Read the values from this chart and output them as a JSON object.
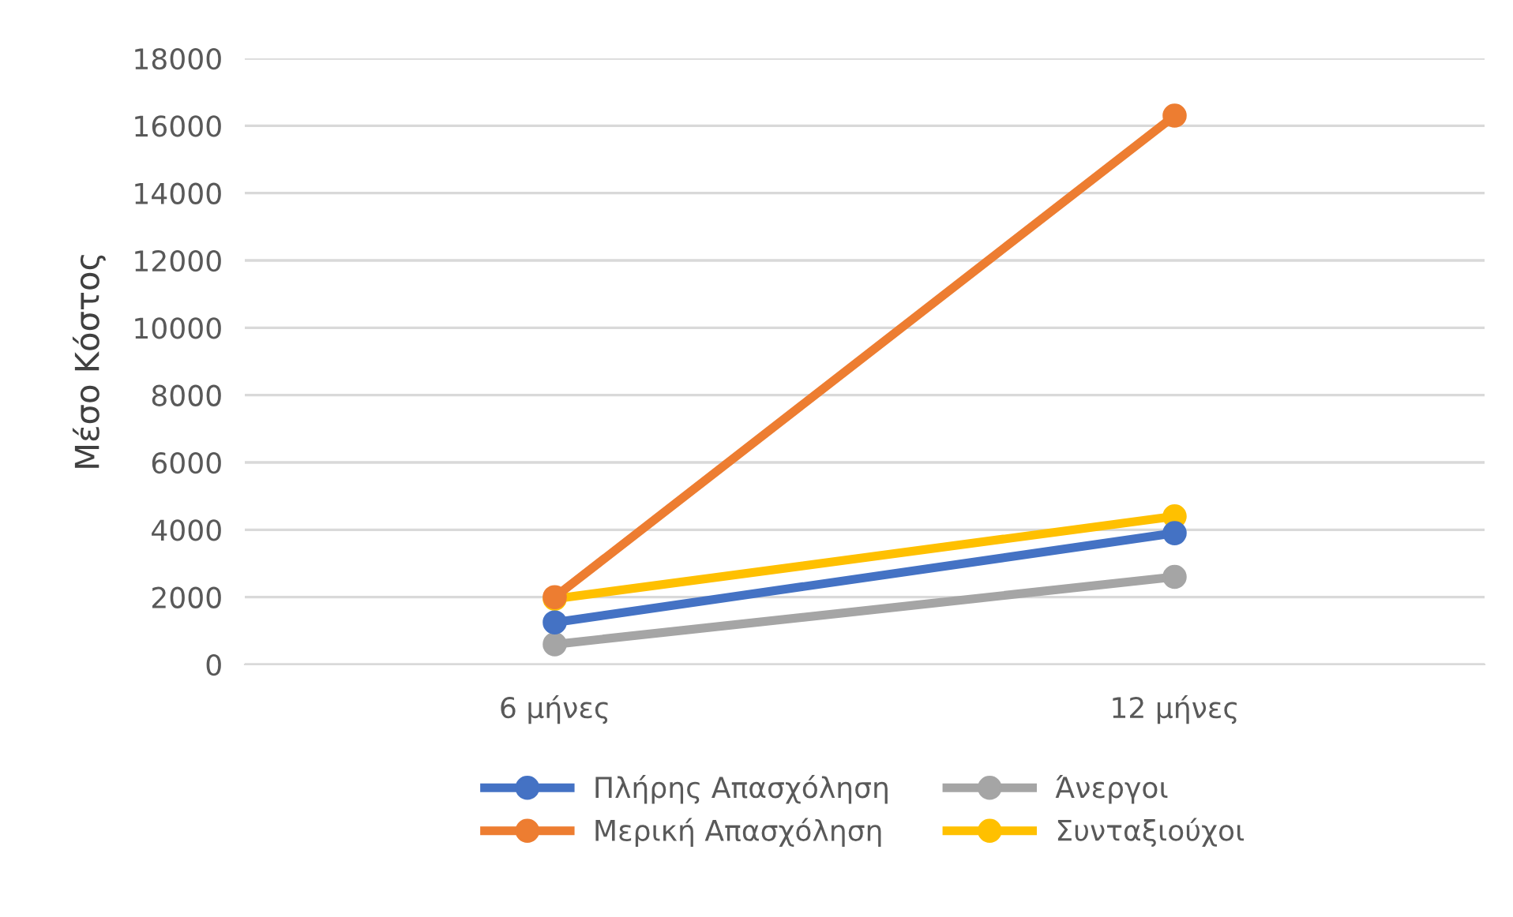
{
  "chart_data": {
    "type": "line",
    "ylabel": "Μέσο Κόστος",
    "categories": [
      "6 μήνες",
      "12 μήνες"
    ],
    "series": [
      {
        "name": "Πλήρης Απασχόληση",
        "color": "#4472c4",
        "values": [
          1250,
          3900
        ]
      },
      {
        "name": "Μερική Απασχόληση",
        "color": "#ed7d31",
        "values": [
          2000,
          16300
        ]
      },
      {
        "name": "Άνεργοι",
        "color": "#a5a5a5",
        "values": [
          600,
          2600
        ]
      },
      {
        "name": "Συνταξιούχοι",
        "color": "#ffc000",
        "values": [
          1950,
          4400
        ]
      }
    ],
    "ylim": [
      0,
      18000
    ],
    "yticks": [
      0,
      2000,
      4000,
      6000,
      8000,
      10000,
      12000,
      14000,
      16000,
      18000
    ],
    "grid": "y",
    "legend": "bottom",
    "marker": "circle",
    "line_style": "solid"
  }
}
